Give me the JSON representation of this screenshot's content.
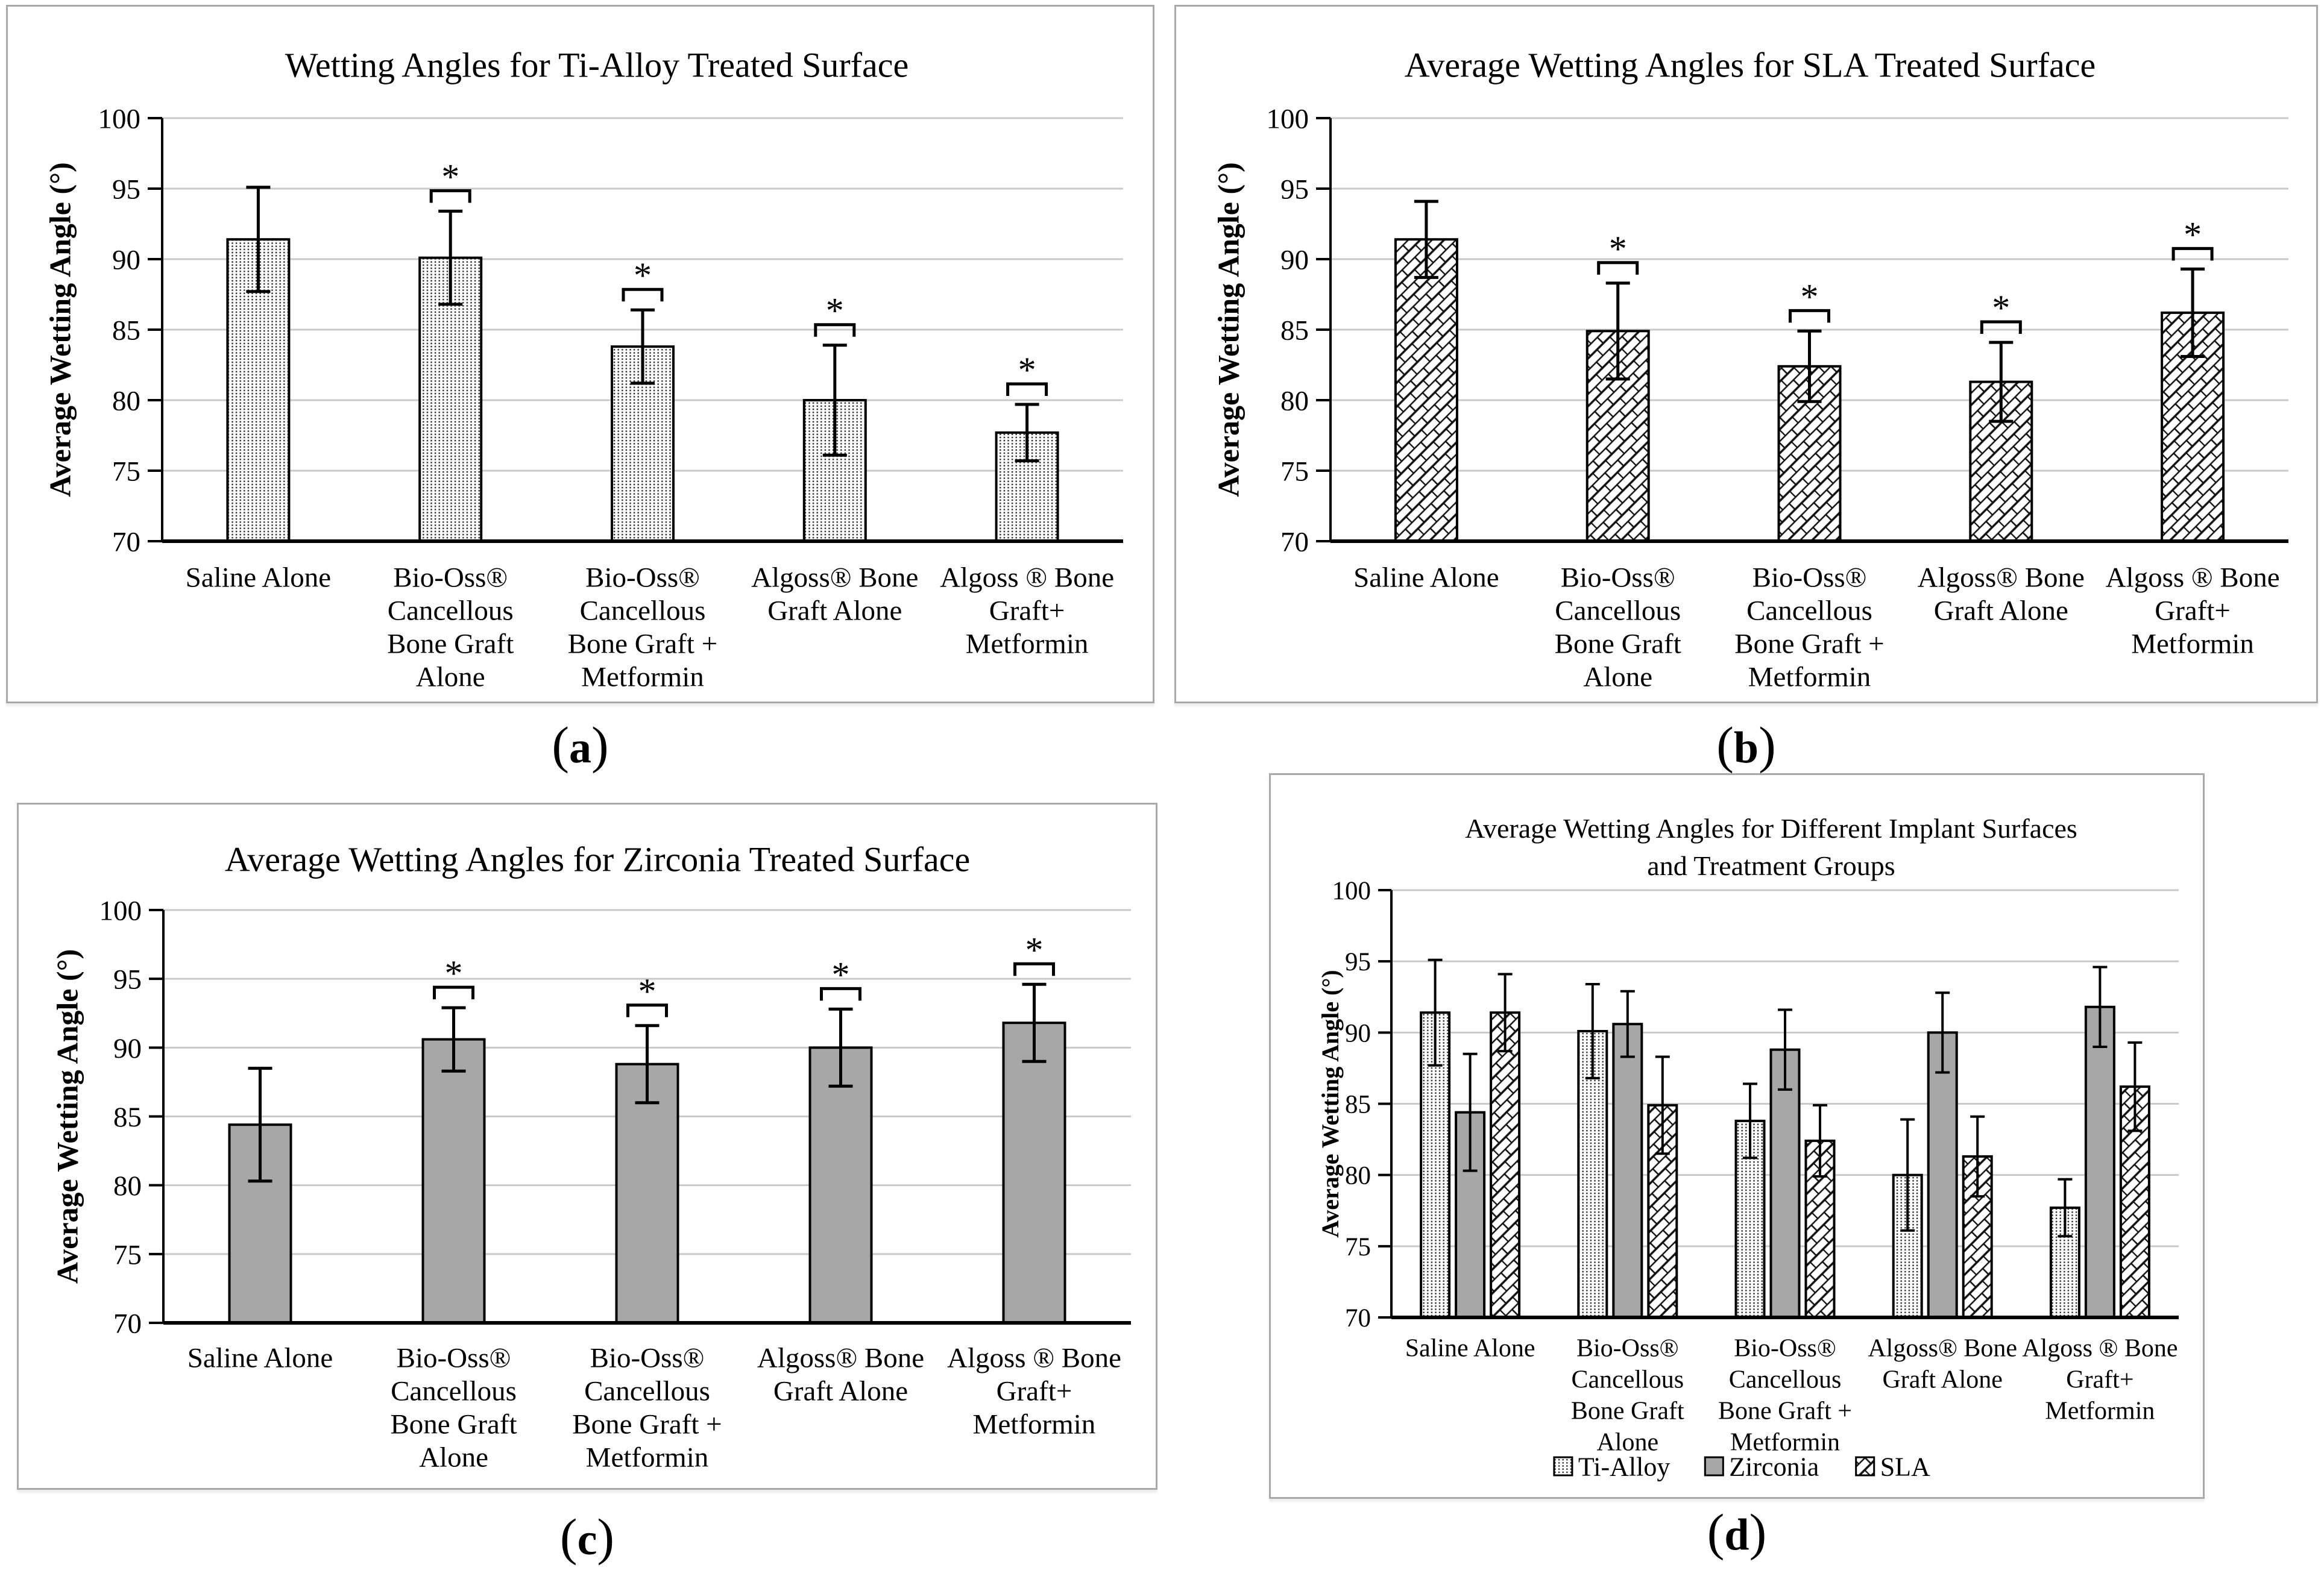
{
  "colors": {
    "ink": "#000000",
    "zirconia_fill": "#a7a7a7",
    "gridline": "#c9c9c9",
    "panel_border": "#a9a9a9",
    "pattern_bg": "#fdfdfd",
    "dot_color": "#2a2a2a"
  },
  "legend_labels": [
    "Ti-Alloy",
    "Zirconia",
    "SLA"
  ],
  "chart_data": [
    {
      "id": "a",
      "type": "bar",
      "title_lines": [
        "Wetting Angles for Ti-Alloy Treated Surface"
      ],
      "ylabel": "Average Wetting Angle (°)",
      "ylim": [
        70,
        100
      ],
      "ytick_step": 5,
      "grid": true,
      "legend_position": "none",
      "categories": [
        [
          "Saline Alone"
        ],
        [
          "Bio-Oss®",
          "Cancellous",
          "Bone Graft",
          "Alone"
        ],
        [
          "Bio-Oss®",
          "Cancellous",
          "Bone Graft +",
          "Metformin"
        ],
        [
          "Algoss® Bone",
          "Graft Alone"
        ],
        [
          "Algoss ® Bone",
          "Graft+",
          "Metformin"
        ]
      ],
      "series": [
        {
          "name": "Ti-Alloy",
          "pattern": "dots",
          "values": [
            91.4,
            90.1,
            83.8,
            80.0,
            77.7
          ],
          "err": [
            3.7,
            3.3,
            2.6,
            3.9,
            2.0
          ]
        }
      ],
      "significance": [
        false,
        true,
        true,
        true,
        true
      ],
      "sig_symbol": "*",
      "caption": {
        "open": "(",
        "letter": "a",
        "close": ")"
      }
    },
    {
      "id": "b",
      "type": "bar",
      "title_lines": [
        "Average Wetting Angles for SLA Treated Surface"
      ],
      "ylabel": "Average Wetting Angle (°)",
      "ylim": [
        70,
        100
      ],
      "ytick_step": 5,
      "grid": true,
      "legend_position": "none",
      "categories": [
        [
          "Saline Alone"
        ],
        [
          "Bio-Oss®",
          "Cancellous",
          "Bone Graft",
          "Alone"
        ],
        [
          "Bio-Oss®",
          "Cancellous",
          "Bone Graft +",
          "Metformin"
        ],
        [
          "Algoss® Bone",
          "Graft Alone"
        ],
        [
          "Algoss ® Bone",
          "Graft+",
          "Metformin"
        ]
      ],
      "series": [
        {
          "name": "SLA",
          "pattern": "brick",
          "values": [
            91.4,
            84.9,
            82.4,
            81.3,
            86.2
          ],
          "err": [
            2.7,
            3.4,
            2.5,
            2.8,
            3.1
          ]
        }
      ],
      "significance": [
        false,
        true,
        true,
        true,
        true
      ],
      "sig_symbol": "*",
      "caption": {
        "open": "(",
        "letter": "b",
        "close": ")"
      }
    },
    {
      "id": "c",
      "type": "bar",
      "title_lines": [
        "Average Wetting Angles for Zirconia Treated Surface"
      ],
      "ylabel": "Average Wetting Angle (°)",
      "ylim": [
        70,
        100
      ],
      "ytick_step": 5,
      "grid": true,
      "legend_position": "none",
      "categories": [
        [
          "Saline Alone"
        ],
        [
          "Bio-Oss®",
          "Cancellous",
          "Bone Graft",
          "Alone"
        ],
        [
          "Bio-Oss®",
          "Cancellous",
          "Bone Graft +",
          "Metformin"
        ],
        [
          "Algoss® Bone",
          "Graft Alone"
        ],
        [
          "Algoss ® Bone",
          "Graft+",
          "Metformin"
        ]
      ],
      "series": [
        {
          "name": "Zirconia",
          "pattern": "solid",
          "values": [
            84.4,
            90.6,
            88.8,
            90.0,
            91.8
          ],
          "err": [
            4.1,
            2.3,
            2.8,
            2.8,
            2.8
          ]
        }
      ],
      "significance": [
        false,
        true,
        true,
        true,
        true
      ],
      "sig_symbol": "*",
      "caption": {
        "open": "(",
        "letter": "c",
        "close": ")"
      }
    },
    {
      "id": "d",
      "type": "bar",
      "title_lines": [
        "Average Wetting Angles for Different  Implant Surfaces",
        "and Treatment Groups"
      ],
      "ylabel": "Average Wetting Angle (°)",
      "ylim": [
        70,
        100
      ],
      "ytick_step": 5,
      "grid": true,
      "legend_position": "bottom",
      "categories": [
        [
          "Saline Alone"
        ],
        [
          "Bio-Oss®",
          "Cancellous",
          "Bone Graft",
          "Alone"
        ],
        [
          "Bio-Oss®",
          "Cancellous",
          "Bone Graft +",
          "Metformin"
        ],
        [
          "Algoss® Bone",
          "Graft Alone"
        ],
        [
          "Algoss ® Bone",
          "Graft+",
          "Metformin"
        ]
      ],
      "series": [
        {
          "name": "Ti-Alloy",
          "pattern": "dots",
          "values": [
            91.4,
            90.1,
            83.8,
            80.0,
            77.7
          ],
          "err": [
            3.7,
            3.3,
            2.6,
            3.9,
            2.0
          ]
        },
        {
          "name": "Zirconia",
          "pattern": "solid",
          "values": [
            84.4,
            90.6,
            88.8,
            90.0,
            91.8
          ],
          "err": [
            4.1,
            2.3,
            2.8,
            2.8,
            2.8
          ]
        },
        {
          "name": "SLA",
          "pattern": "brick",
          "values": [
            91.4,
            84.9,
            82.4,
            81.3,
            86.2
          ],
          "err": [
            2.7,
            3.4,
            2.5,
            2.8,
            3.1
          ]
        }
      ],
      "significance": [
        false,
        false,
        false,
        false,
        false
      ],
      "sig_symbol": "*",
      "caption": {
        "open": "(",
        "letter": "d",
        "close": ")"
      }
    }
  ]
}
